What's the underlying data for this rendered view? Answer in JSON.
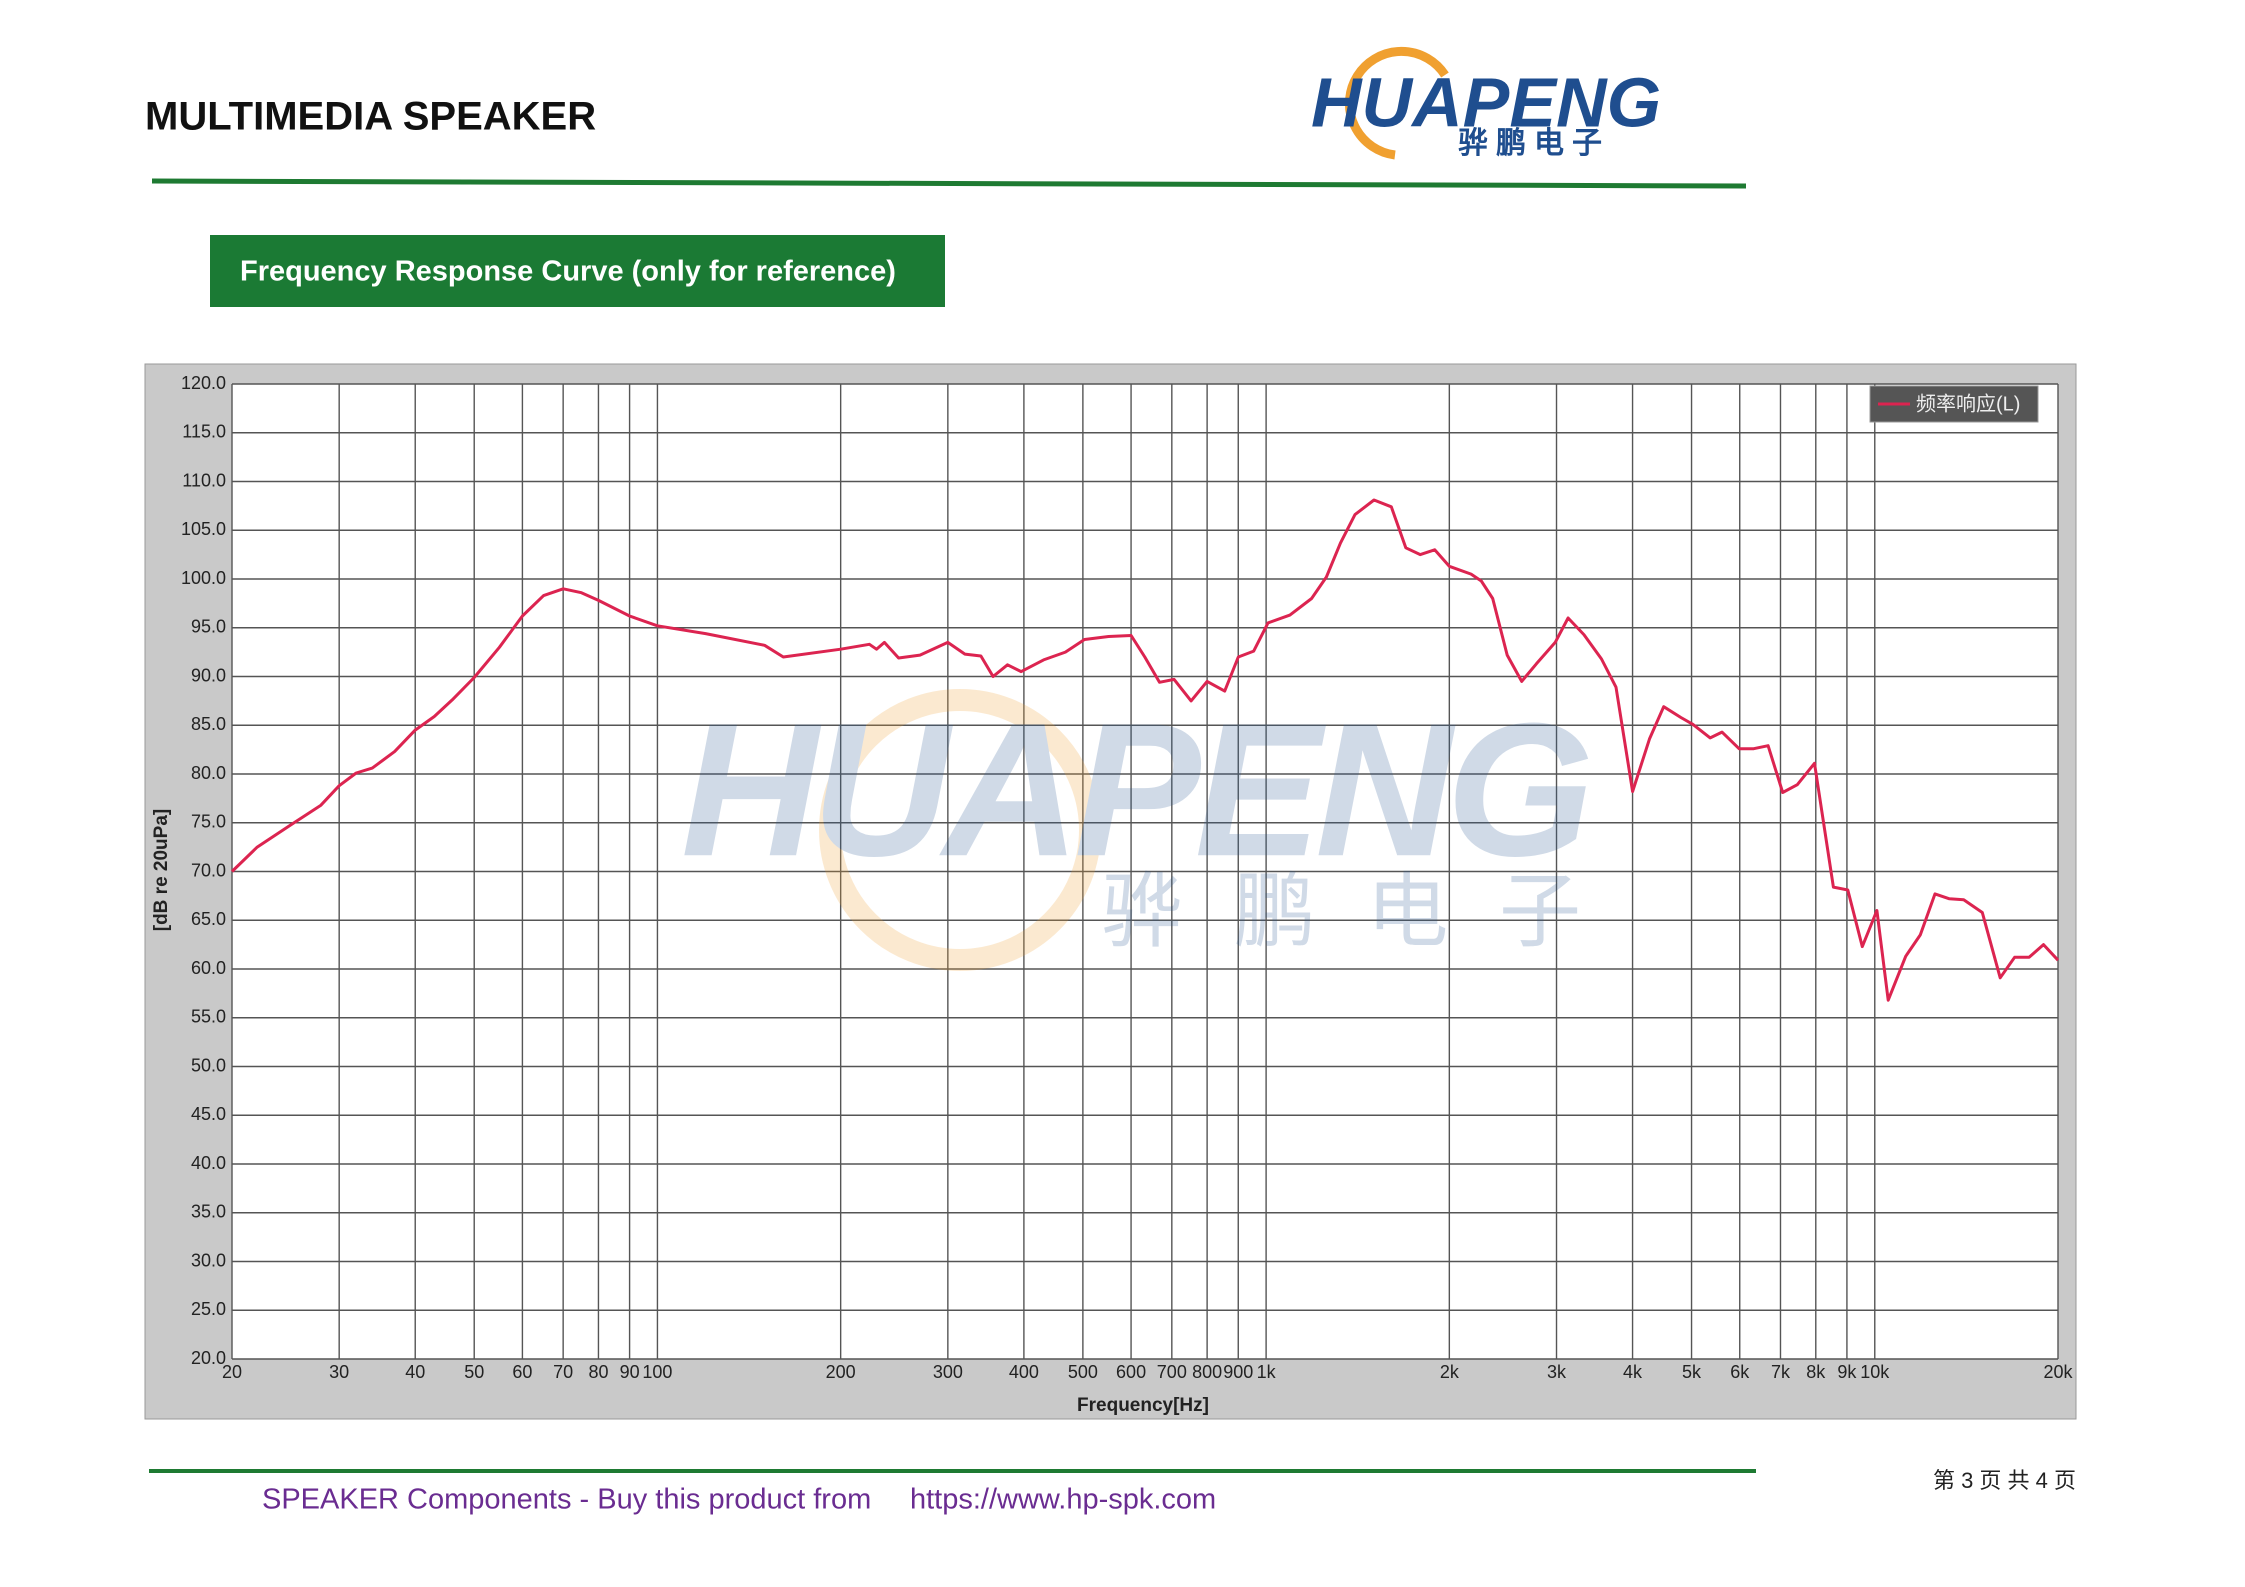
{
  "header": {
    "title": "MULTIMEDIA SPEAKER",
    "logo": "HUAPENG",
    "logo_sub": "骅鹏电子"
  },
  "section": {
    "title": "Frequency Response Curve (only for reference)"
  },
  "watermark": {
    "text": "HUAPENG",
    "sub": "骅鹏电子"
  },
  "chart_data": {
    "type": "line",
    "xlabel": "Frequency[Hz]",
    "ylabel": "[dB re 20uPa]",
    "xscale": "log",
    "xlim": [
      20,
      20000
    ],
    "ylim": [
      20,
      120
    ],
    "grid": true,
    "legend": "top-right",
    "xticks": [
      20,
      30,
      40,
      50,
      60,
      70,
      80,
      90,
      100,
      200,
      300,
      400,
      500,
      600,
      700,
      800,
      900,
      {
        "value": 1000,
        "label": "1k"
      },
      {
        "value": 2000,
        "label": "2k"
      },
      {
        "value": 3000,
        "label": "3k"
      },
      {
        "value": 4000,
        "label": "4k"
      },
      {
        "value": 5000,
        "label": "5k"
      },
      {
        "value": 6000,
        "label": "6k"
      },
      {
        "value": 7000,
        "label": "7k"
      },
      {
        "value": 8000,
        "label": "8k"
      },
      {
        "value": 9000,
        "label": "9k"
      },
      {
        "value": 10000,
        "label": "10k"
      },
      {
        "value": 20000,
        "label": "20k"
      }
    ],
    "yticks": [
      {
        "value": 20,
        "label": "20.0"
      },
      {
        "value": 25,
        "label": "25.0"
      },
      {
        "value": 30,
        "label": "30.0"
      },
      {
        "value": 35,
        "label": "35.0"
      },
      {
        "value": 40,
        "label": "40.0"
      },
      {
        "value": 45,
        "label": "45.0"
      },
      {
        "value": 50,
        "label": "50.0"
      },
      {
        "value": 55,
        "label": "55.0"
      },
      {
        "value": 60,
        "label": "60.0"
      },
      {
        "value": 65,
        "label": "65.0"
      },
      {
        "value": 70,
        "label": "70.0"
      },
      {
        "value": 75,
        "label": "75.0"
      },
      {
        "value": 80,
        "label": "80.0"
      },
      {
        "value": 85,
        "label": "85.0"
      },
      {
        "value": 90,
        "label": "90.0"
      },
      {
        "value": 95,
        "label": "95.0"
      },
      {
        "value": 100,
        "label": "100.0"
      },
      {
        "value": 105,
        "label": "105.0"
      },
      {
        "value": 110,
        "label": "110.0"
      },
      {
        "value": 115,
        "label": "115.0"
      },
      {
        "value": 120,
        "label": "120.0"
      }
    ],
    "x": [
      20,
      22,
      25,
      28,
      30,
      32,
      34,
      37,
      40,
      43,
      46,
      50,
      55,
      60,
      65,
      70,
      75,
      80,
      90,
      100,
      120,
      150,
      161,
      200,
      223,
      229,
      236,
      249,
      270,
      300,
      320,
      340,
      356,
      376,
      396,
      431,
      468,
      503,
      551,
      600,
      632,
      668,
      706,
      753,
      800,
      855,
      900,
      954,
      1007,
      1094,
      1188,
      1256,
      1325,
      1400,
      1504,
      1606,
      1696,
      1792,
      1892,
      2000,
      2172,
      2257,
      2357,
      2489,
      2630,
      2780,
      2985,
      3135,
      3327,
      3556,
      3757,
      4000,
      4264,
      4500,
      4803,
      5024,
      5366,
      5610,
      5985,
      6325,
      6680,
      7060,
      7460,
      7960,
      8550,
      9030,
      9540,
      10080,
      10520,
      11240,
      11880,
      12560,
      13260,
      14000,
      15020,
      16070,
      16970,
      17930,
      18930,
      20000
    ],
    "series": [
      {
        "name": "频率响应(L)",
        "color": "#dc2450",
        "values": [
          70.0,
          72.5,
          74.8,
          76.8,
          78.8,
          80.1,
          80.6,
          82.3,
          84.5,
          85.9,
          87.6,
          89.9,
          93.0,
          96.2,
          98.3,
          99.0,
          98.6,
          97.8,
          96.2,
          95.2,
          94.4,
          93.2,
          92.0,
          92.8,
          93.3,
          92.8,
          93.5,
          91.9,
          92.2,
          93.5,
          92.3,
          92.1,
          90.0,
          91.2,
          90.5,
          91.7,
          92.5,
          93.8,
          94.1,
          94.2,
          92.0,
          89.4,
          89.7,
          87.5,
          89.5,
          88.5,
          92.0,
          92.6,
          95.5,
          96.3,
          98.0,
          100.2,
          103.7,
          106.6,
          108.1,
          107.4,
          103.2,
          102.5,
          103.0,
          101.3,
          100.5,
          99.8,
          98.0,
          92.2,
          89.5,
          91.3,
          93.5,
          96.0,
          94.3,
          91.8,
          88.9,
          78.2,
          83.6,
          86.9,
          85.8,
          85.1,
          83.7,
          84.3,
          82.6,
          82.6,
          82.9,
          78.1,
          78.9,
          81.1,
          68.4,
          68.1,
          62.3,
          66.0,
          56.8,
          61.3,
          63.5,
          67.7,
          67.2,
          67.1,
          65.8,
          59.1,
          61.2,
          61.2,
          62.5,
          60.9
        ]
      }
    ]
  },
  "footer": {
    "text": "SPEAKER Components - Buy this product from",
    "link": "https://www.hp-spk.com",
    "page": "第 3 页 共 4 页"
  }
}
